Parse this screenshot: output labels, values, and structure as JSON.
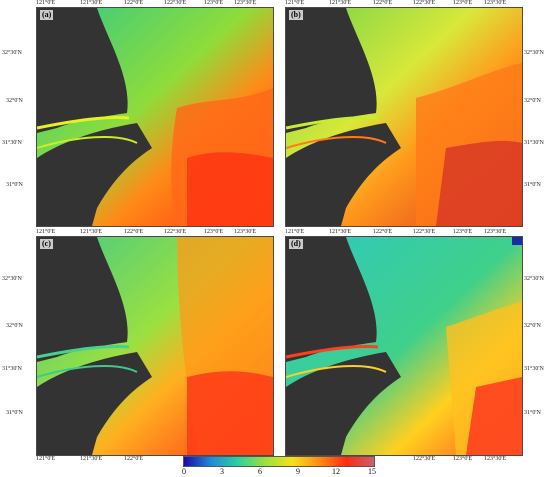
{
  "panels": [
    {
      "label": "(a)",
      "warm": "#ff7a18",
      "hot": "#ff2a10",
      "cool": "#3fd06a",
      "coast": "#e8f020"
    },
    {
      "label": "(b)",
      "warm": "#ff9a1c",
      "hot": "#e83020",
      "cool": "#7fd84a",
      "coast": "#c8ec30"
    },
    {
      "label": "(c)",
      "warm": "#ffb020",
      "hot": "#ff3a18",
      "cool": "#3fc98a",
      "coast": "#48d090"
    },
    {
      "label": "(d)",
      "warm": "#ffd020",
      "hot": "#ff5020",
      "cool": "#2fd0b8",
      "coast": "#ff4020"
    }
  ],
  "axis": {
    "longitudes": [
      "121°0'E",
      "121°30'E",
      "122°0'E",
      "122°30'E",
      "123°0'E",
      "123°30'E"
    ],
    "lat_left": [
      "32°30'N",
      "32°0'N",
      "31°30'N",
      "31°0'N"
    ],
    "lat_right": [
      "32°30'N",
      "32°0'N",
      "31°30'N",
      "31°0'N"
    ]
  },
  "colorbar": {
    "ticks": [
      "0",
      "3",
      "6",
      "9",
      "12",
      "15"
    ],
    "colors": [
      "#1a0aa8",
      "#1f8bd8",
      "#2fd0a0",
      "#9ee03c",
      "#f5e21a",
      "#ff8a16",
      "#ff2a10",
      "#c8646e"
    ]
  }
}
